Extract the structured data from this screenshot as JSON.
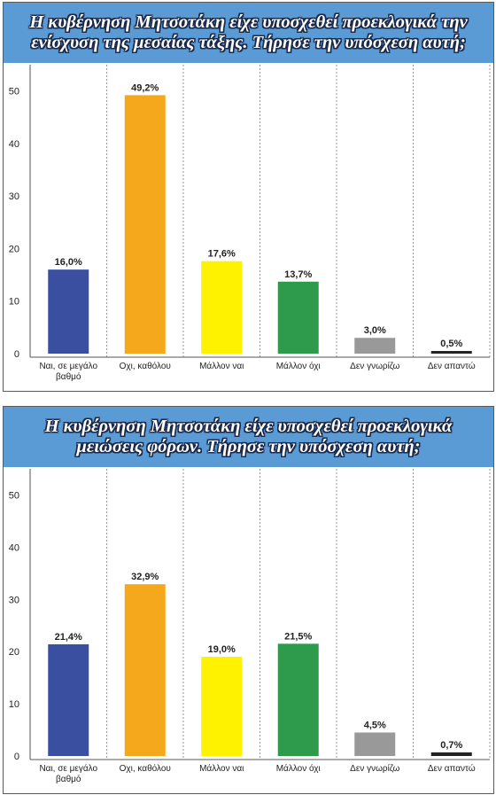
{
  "chart_data": [
    {
      "type": "bar",
      "title": "Η κυβέρνηση Μητσοτάκη είχε υποσχεθεί προεκλογικά την ενίσχυση της μεσαίας τάξης. Τήρησε την υπόσχεση αυτή;",
      "categories": [
        "Ναι, σε μεγάλο βαθμό",
        "Οχι, καθόλου",
        "Μάλλον ναι",
        "Μάλλον όχι",
        "Δεν γνωρίζω",
        "Δεν απαντώ"
      ],
      "values": [
        16.0,
        49.2,
        17.6,
        13.7,
        3.0,
        0.5
      ],
      "value_labels": [
        "16,0%",
        "49,2%",
        "17,6%",
        "13,7%",
        "3,0%",
        "0,5%"
      ],
      "colors": [
        "#3a4fa0",
        "#f5a81c",
        "#fff200",
        "#2e9a4b",
        "#999999",
        "#222222"
      ],
      "yticks": [
        "0",
        "10",
        "20",
        "30",
        "40",
        "50"
      ],
      "ylim": [
        0,
        55
      ],
      "grid": "vertical dashed",
      "title_bg": "#5b9bd5"
    },
    {
      "type": "bar",
      "title": "Η κυβέρνηση Μητσοτάκη είχε υποσχεθεί προεκλογικά μειώσεις φόρων. Τήρησε την υπόσχεση αυτή;",
      "categories": [
        "Ναι, σε μεγάλο βαθμό",
        "Οχι, καθόλου",
        "Μάλλον ναι",
        "Μάλλον όχι",
        "Δεν γνωρίζω",
        "Δεν απαντώ"
      ],
      "values": [
        21.4,
        32.9,
        19.0,
        21.5,
        4.5,
        0.7
      ],
      "value_labels": [
        "21,4%",
        "32,9%",
        "19,0%",
        "21,5%",
        "4,5%",
        "0,7%"
      ],
      "colors": [
        "#3a4fa0",
        "#f5a81c",
        "#fff200",
        "#2e9a4b",
        "#999999",
        "#222222"
      ],
      "yticks": [
        "0",
        "10",
        "20",
        "30",
        "40",
        "50"
      ],
      "ylim": [
        0,
        55
      ],
      "grid": "vertical dashed",
      "title_bg": "#5b9bd5"
    }
  ]
}
